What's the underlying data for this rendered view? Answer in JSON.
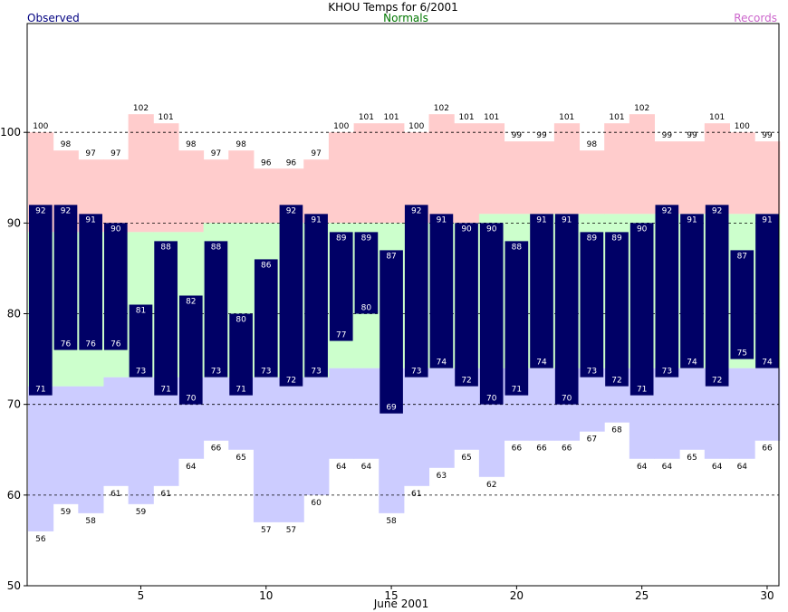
{
  "chart_data": {
    "type": "bar",
    "title": "KHOU Temps for 6/2001",
    "legend": {
      "observed": "Observed",
      "normals": "Normals",
      "records": "Records"
    },
    "xlabel": "June 2001",
    "ylabel": "",
    "days": [
      1,
      2,
      3,
      4,
      5,
      6,
      7,
      8,
      9,
      10,
      11,
      12,
      13,
      14,
      15,
      16,
      17,
      18,
      19,
      20,
      21,
      22,
      23,
      24,
      25,
      26,
      27,
      28,
      29,
      30
    ],
    "xticks": [
      5,
      10,
      15,
      20,
      25,
      30
    ],
    "yticks": [
      50,
      60,
      70,
      80,
      90,
      100
    ],
    "ylim": [
      50,
      112
    ],
    "grid": "dashed horizontal at 60, 70, 80, 90, 100",
    "series": [
      {
        "name": "Observed",
        "role": "observed_high",
        "values": [
          92,
          92,
          91,
          90,
          81,
          88,
          82,
          88,
          80,
          86,
          92,
          91,
          89,
          89,
          87,
          92,
          91,
          90,
          90,
          88,
          91,
          91,
          89,
          89,
          90,
          92,
          91,
          92,
          87,
          91
        ]
      },
      {
        "name": "Observed",
        "role": "observed_low",
        "values": [
          71,
          76,
          76,
          76,
          73,
          71,
          70,
          73,
          71,
          73,
          72,
          73,
          77,
          80,
          69,
          73,
          74,
          72,
          70,
          71,
          74,
          70,
          73,
          72,
          71,
          73,
          74,
          72,
          75,
          74
        ]
      },
      {
        "name": "Normals",
        "role": "normal_high",
        "values": [
          89,
          89,
          89,
          89,
          89,
          89,
          89,
          90,
          90,
          90,
          90,
          90,
          90,
          90,
          90,
          90,
          90,
          90,
          91,
          91,
          91,
          91,
          91,
          91,
          91,
          91,
          91,
          91,
          91,
          91
        ]
      },
      {
        "name": "Normals",
        "role": "normal_low",
        "values": [
          72,
          72,
          72,
          73,
          73,
          73,
          73,
          73,
          73,
          73,
          73,
          73,
          74,
          74,
          74,
          74,
          74,
          74,
          74,
          74,
          74,
          74,
          74,
          74,
          74,
          74,
          74,
          74,
          74,
          74
        ]
      },
      {
        "name": "Records",
        "role": "record_high",
        "values": [
          100,
          98,
          97,
          97,
          102,
          101,
          98,
          97,
          98,
          96,
          96,
          97,
          100,
          101,
          101,
          100,
          102,
          101,
          101,
          99,
          99,
          101,
          98,
          101,
          102,
          99,
          99,
          101,
          100,
          99
        ]
      },
      {
        "name": "Records",
        "role": "record_low",
        "values": [
          56,
          59,
          58,
          61,
          59,
          61,
          64,
          66,
          65,
          57,
          57,
          60,
          64,
          64,
          58,
          61,
          63,
          65,
          62,
          66,
          66,
          66,
          67,
          68,
          64,
          64,
          65,
          64,
          64,
          66
        ]
      }
    ],
    "colors": {
      "observed": "#000066",
      "observed_legend": "#000080",
      "normals": "#ccffcc",
      "normals_legend": "#007700",
      "record_high": "#ffcccc",
      "record_low": "#ccccff",
      "records_legend": "#cc66cc",
      "label_on_dark": "#ffffff",
      "label": "#000000"
    }
  }
}
